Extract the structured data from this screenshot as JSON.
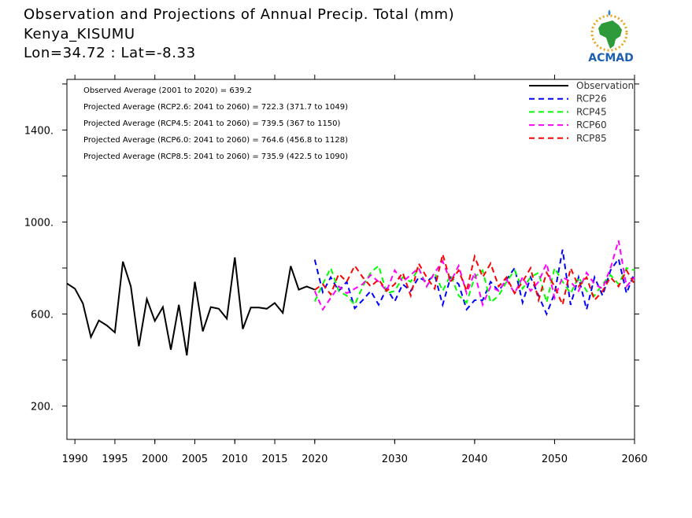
{
  "header": {
    "line1": "Observation and Projections of Annual Precip. Total (mm)",
    "line2": "Kenya_KISUMU",
    "line3": "Lon=34.72 : Lat=-8.33"
  },
  "logo": {
    "text": "ACMAD",
    "icon": "africa-map-logo"
  },
  "chart_data": {
    "type": "line",
    "xlim": [
      1989,
      2060
    ],
    "ylim": [
      55,
      1620
    ],
    "grid": false,
    "legend_position": "top-right",
    "x_ticks": [
      {
        "value": 1990,
        "label": "1990"
      },
      {
        "value": 1995,
        "label": "1995"
      },
      {
        "value": 2000,
        "label": "2000"
      },
      {
        "value": 2005,
        "label": "2005"
      },
      {
        "value": 2010,
        "label": "2010"
      },
      {
        "value": 2015,
        "label": "2015"
      },
      {
        "value": 2020,
        "label": "2020"
      },
      {
        "value": 2030,
        "label": "2030"
      },
      {
        "value": 2040,
        "label": "2040"
      },
      {
        "value": 2050,
        "label": "2050"
      },
      {
        "value": 2060,
        "label": "2060"
      }
    ],
    "y_ticks": [
      {
        "value": 200,
        "label": "200."
      },
      {
        "value": 600,
        "label": "600."
      },
      {
        "value": 1000,
        "label": "1000."
      },
      {
        "value": 1400,
        "label": "1400."
      }
    ],
    "annotations": [
      "Observed Average (2001 to 2020) = 639.2",
      "Projected Average (RCP2.6: 2041 to 2060) = 722.3 (371.7 to 1049)",
      "Projected Average (RCP4.5: 2041 to 2060) = 739.5 (367 to 1150)",
      "Projected Average (RCP6.0: 2041 to 2060) = 764.6 (456.8 to 1128)",
      "Projected Average (RCP8.5: 2041 to 2060) = 735.9 (422.5 to 1090)"
    ],
    "series": [
      {
        "name": "Observation",
        "color": "#000000",
        "dashed": false,
        "x": [
          1989,
          1990,
          1991,
          1992,
          1993,
          1994,
          1995,
          1996,
          1997,
          1998,
          1999,
          2000,
          2001,
          2002,
          2003,
          2004,
          2005,
          2006,
          2007,
          2008,
          2009,
          2010,
          2011,
          2012,
          2013,
          2014,
          2015,
          2016,
          2017,
          2018,
          2019,
          2020
        ],
        "values": [
          733,
          710,
          646,
          500,
          572,
          550,
          520,
          828,
          720,
          460,
          665,
          570,
          630,
          445,
          640,
          420,
          740,
          525,
          630,
          623,
          580,
          846,
          535,
          628,
          628,
          623,
          648,
          605,
          808,
          706,
          720,
          706
        ]
      },
      {
        "name": "RCP26",
        "color": "#0000ff",
        "dashed": true,
        "x": [
          2020,
          2021,
          2022,
          2023,
          2024,
          2025,
          2026,
          2027,
          2028,
          2029,
          2030,
          2031,
          2032,
          2033,
          2034,
          2035,
          2036,
          2037,
          2038,
          2039,
          2040,
          2041,
          2042,
          2043,
          2044,
          2045,
          2046,
          2047,
          2048,
          2049,
          2050,
          2051,
          2052,
          2053,
          2054,
          2055,
          2056,
          2057,
          2058,
          2059,
          2060
        ],
        "values": [
          836,
          695,
          760,
          700,
          740,
          625,
          660,
          700,
          640,
          710,
          655,
          730,
          700,
          760,
          740,
          770,
          640,
          760,
          730,
          620,
          660,
          660,
          740,
          700,
          750,
          800,
          650,
          760,
          680,
          600,
          690,
          880,
          640,
          760,
          620,
          760,
          680,
          790,
          840,
          690,
          780
        ]
      },
      {
        "name": "RCP45",
        "color": "#00ff00",
        "dashed": true,
        "x": [
          2020,
          2021,
          2022,
          2023,
          2024,
          2025,
          2026,
          2027,
          2028,
          2029,
          2030,
          2031,
          2032,
          2033,
          2034,
          2035,
          2036,
          2037,
          2038,
          2039,
          2040,
          2041,
          2042,
          2043,
          2044,
          2045,
          2046,
          2047,
          2048,
          2049,
          2050,
          2051,
          2052,
          2053,
          2054,
          2055,
          2056,
          2057,
          2058,
          2059,
          2060
        ],
        "values": [
          655,
          730,
          800,
          700,
          680,
          640,
          720,
          780,
          810,
          690,
          700,
          760,
          740,
          800,
          720,
          780,
          700,
          770,
          680,
          650,
          760,
          790,
          650,
          680,
          740,
          790,
          710,
          760,
          780,
          650,
          800,
          740,
          690,
          760,
          700,
          680,
          730,
          770,
          730,
          800,
          790
        ]
      },
      {
        "name": "RCP60",
        "color": "#ff00ff",
        "dashed": true,
        "x": [
          2020,
          2021,
          2022,
          2023,
          2024,
          2025,
          2026,
          2027,
          2028,
          2029,
          2030,
          2031,
          2032,
          2033,
          2034,
          2035,
          2036,
          2037,
          2038,
          2039,
          2040,
          2041,
          2042,
          2043,
          2044,
          2045,
          2046,
          2047,
          2048,
          2049,
          2050,
          2051,
          2052,
          2053,
          2054,
          2055,
          2056,
          2057,
          2058,
          2059,
          2060
        ],
        "values": [
          700,
          620,
          670,
          720,
          690,
          710,
          730,
          770,
          740,
          700,
          790,
          740,
          770,
          800,
          720,
          780,
          830,
          740,
          810,
          690,
          780,
          640,
          720,
          700,
          750,
          690,
          760,
          700,
          740,
          820,
          670,
          760,
          740,
          700,
          780,
          730,
          710,
          800,
          920,
          720,
          760
        ]
      },
      {
        "name": "RCP85",
        "color": "#ff0000",
        "dashed": true,
        "x": [
          2020,
          2021,
          2022,
          2023,
          2024,
          2025,
          2026,
          2027,
          2028,
          2029,
          2030,
          2031,
          2032,
          2033,
          2034,
          2035,
          2036,
          2037,
          2038,
          2039,
          2040,
          2041,
          2042,
          2043,
          2044,
          2045,
          2046,
          2047,
          2048,
          2049,
          2050,
          2051,
          2052,
          2053,
          2054,
          2055,
          2056,
          2057,
          2058,
          2059,
          2060
        ],
        "values": [
          705,
          730,
          685,
          775,
          740,
          810,
          760,
          720,
          750,
          700,
          730,
          780,
          680,
          820,
          760,
          710,
          860,
          740,
          790,
          700,
          850,
          760,
          820,
          720,
          760,
          690,
          740,
          800,
          660,
          780,
          720,
          640,
          800,
          720,
          760,
          660,
          700,
          760,
          720,
          790,
          730
        ]
      }
    ]
  }
}
